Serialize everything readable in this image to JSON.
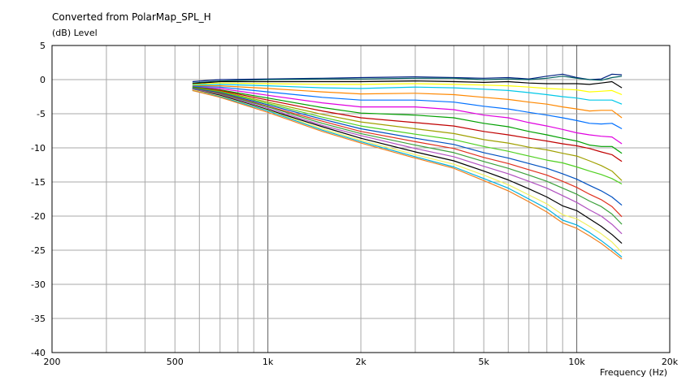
{
  "chart_data": {
    "type": "line",
    "title": "Converted from PolarMap_SPL_H",
    "ylabel": "(dB)  Level",
    "xlabel": "Frequency  (Hz)",
    "x_scale": "log",
    "xlim": [
      200,
      20000
    ],
    "ylim": [
      -40,
      5
    ],
    "grid": true,
    "x_tick_labels": [
      {
        "value": 200,
        "label": "200"
      },
      {
        "value": 500,
        "label": "500"
      },
      {
        "value": 1000,
        "label": "1k"
      },
      {
        "value": 2000,
        "label": "2k"
      },
      {
        "value": 5000,
        "label": "5k"
      },
      {
        "value": 10000,
        "label": "10k"
      },
      {
        "value": 20000,
        "label": "20k"
      }
    ],
    "y_tick_labels": [
      {
        "value": 5,
        "label": "5"
      },
      {
        "value": 0,
        "label": "0"
      },
      {
        "value": -5,
        "label": "-5"
      },
      {
        "value": -10,
        "label": "-10"
      },
      {
        "value": -15,
        "label": "-15"
      },
      {
        "value": -20,
        "label": "-20"
      },
      {
        "value": -25,
        "label": "-25"
      },
      {
        "value": -30,
        "label": "-30"
      },
      {
        "value": -35,
        "label": "-35"
      },
      {
        "value": -40,
        "label": "-40"
      }
    ],
    "x": [
      570,
      700,
      1000,
      1500,
      2000,
      3000,
      4000,
      5000,
      6000,
      7000,
      8000,
      9000,
      10000,
      11000,
      12000,
      13000,
      14000
    ],
    "series": [
      {
        "color": "#002080",
        "values": [
          -0.3,
          0.0,
          0.1,
          0.2,
          0.3,
          0.4,
          0.3,
          0.2,
          0.3,
          0.1,
          0.5,
          0.8,
          0.3,
          0.0,
          0.1,
          0.8,
          0.7
        ]
      },
      {
        "color": "#006060",
        "values": [
          -0.5,
          -0.2,
          0.0,
          0.1,
          0.1,
          0.2,
          0.2,
          0.0,
          0.1,
          0.0,
          0.2,
          0.5,
          0.2,
          0.0,
          -0.1,
          0.3,
          0.5
        ]
      },
      {
        "color": "#000000",
        "values": [
          -0.6,
          -0.3,
          -0.3,
          -0.3,
          -0.3,
          -0.2,
          -0.3,
          -0.4,
          -0.3,
          -0.5,
          -0.6,
          -0.6,
          -0.6,
          -0.7,
          -0.5,
          -0.3,
          -1.2
        ]
      },
      {
        "color": "#ffff00",
        "values": [
          -0.7,
          -0.5,
          -0.6,
          -0.7,
          -0.7,
          -0.6,
          -0.7,
          -0.8,
          -0.9,
          -1.1,
          -1.3,
          -1.4,
          -1.5,
          -1.8,
          -1.7,
          -1.6,
          -2.2
        ]
      },
      {
        "color": "#00c8e8",
        "values": [
          -0.8,
          -0.7,
          -0.9,
          -1.2,
          -1.3,
          -1.1,
          -1.2,
          -1.4,
          -1.6,
          -1.9,
          -2.2,
          -2.5,
          -2.7,
          -3.0,
          -3.0,
          -3.0,
          -3.6
        ]
      },
      {
        "color": "#ff8800",
        "values": [
          -0.9,
          -0.9,
          -1.3,
          -1.8,
          -2.1,
          -2.0,
          -2.2,
          -2.6,
          -2.9,
          -3.3,
          -3.6,
          -4.0,
          -4.3,
          -4.6,
          -4.5,
          -4.5,
          -5.6
        ]
      },
      {
        "color": "#0070ff",
        "values": [
          -1.0,
          -1.1,
          -1.8,
          -2.6,
          -3.0,
          -3.0,
          -3.3,
          -3.9,
          -4.3,
          -4.8,
          -5.2,
          -5.6,
          -6.0,
          -6.4,
          -6.5,
          -6.4,
          -7.2
        ]
      },
      {
        "color": "#e000e0",
        "values": [
          -1.1,
          -1.3,
          -2.3,
          -3.4,
          -4.0,
          -4.0,
          -4.4,
          -5.2,
          -5.6,
          -6.3,
          -6.8,
          -7.3,
          -7.8,
          -8.1,
          -8.3,
          -8.4,
          -9.4
        ]
      },
      {
        "color": "#00a000",
        "values": [
          -1.1,
          -1.5,
          -2.7,
          -4.1,
          -4.9,
          -5.2,
          -5.6,
          -6.4,
          -6.9,
          -7.6,
          -8.1,
          -8.6,
          -9.0,
          -9.6,
          -9.8,
          -9.8,
          -10.8
        ]
      },
      {
        "color": "#c00000",
        "values": [
          -1.2,
          -1.6,
          -3.0,
          -4.6,
          -5.6,
          -6.3,
          -6.8,
          -7.6,
          -8.1,
          -8.6,
          -9.0,
          -9.4,
          -9.7,
          -10.1,
          -10.6,
          -11.0,
          -12.0
        ]
      },
      {
        "color": "#a0a000",
        "values": [
          -1.2,
          -1.7,
          -3.3,
          -5.1,
          -6.2,
          -7.2,
          -7.9,
          -8.8,
          -9.3,
          -9.9,
          -10.3,
          -10.8,
          -11.2,
          -11.9,
          -12.6,
          -13.4,
          -14.8
        ]
      },
      {
        "color": "#50d020",
        "values": [
          -1.3,
          -1.8,
          -3.5,
          -5.5,
          -6.8,
          -8.0,
          -8.8,
          -9.8,
          -10.5,
          -11.2,
          -11.8,
          -12.2,
          -12.8,
          -13.4,
          -13.9,
          -14.5,
          -15.3
        ]
      },
      {
        "color": "#0050c0",
        "values": [
          -1.3,
          -1.9,
          -3.7,
          -5.8,
          -7.2,
          -8.6,
          -9.5,
          -10.7,
          -11.5,
          -12.3,
          -13.0,
          -13.8,
          -14.6,
          -15.5,
          -16.3,
          -17.2,
          -18.4
        ]
      },
      {
        "color": "#e0301e",
        "values": [
          -1.4,
          -2.0,
          -3.9,
          -6.1,
          -7.6,
          -9.1,
          -10.1,
          -11.4,
          -12.3,
          -13.2,
          -14.0,
          -14.9,
          -15.8,
          -16.8,
          -17.6,
          -18.6,
          -20.1
        ]
      },
      {
        "color": "#3aa03a",
        "values": [
          -1.4,
          -2.1,
          -4.0,
          -6.4,
          -7.9,
          -9.6,
          -10.7,
          -12.0,
          -13.0,
          -14.0,
          -14.9,
          -15.9,
          -16.8,
          -17.8,
          -18.6,
          -19.7,
          -21.2
        ]
      },
      {
        "color": "#b050c0",
        "values": [
          -1.4,
          -2.2,
          -4.2,
          -6.7,
          -8.2,
          -10.1,
          -11.3,
          -12.7,
          -13.8,
          -14.9,
          -15.9,
          -17.0,
          -18.0,
          -19.1,
          -20.0,
          -21.2,
          -22.6
        ]
      },
      {
        "color": "#000000",
        "values": [
          -1.5,
          -2.3,
          -4.4,
          -6.9,
          -8.6,
          -10.6,
          -11.9,
          -13.4,
          -14.7,
          -16.0,
          -17.2,
          -18.5,
          -19.2,
          -20.4,
          -21.5,
          -22.7,
          -24.0
        ]
      },
      {
        "color": "#f0f060",
        "values": [
          -1.5,
          -2.4,
          -4.5,
          -7.2,
          -8.9,
          -11.0,
          -12.4,
          -14.0,
          -15.4,
          -16.9,
          -18.2,
          -19.8,
          -20.4,
          -21.5,
          -22.6,
          -23.8,
          -25.3
        ]
      },
      {
        "color": "#00b0e0",
        "values": [
          -1.6,
          -2.5,
          -4.6,
          -7.4,
          -9.1,
          -11.3,
          -12.8,
          -14.5,
          -15.9,
          -17.5,
          -18.9,
          -20.6,
          -21.3,
          -22.4,
          -23.6,
          -24.8,
          -26.0
        ]
      },
      {
        "color": "#f08020",
        "values": [
          -1.6,
          -2.6,
          -4.8,
          -7.6,
          -9.3,
          -11.5,
          -13.0,
          -14.8,
          -16.3,
          -17.9,
          -19.4,
          -21.0,
          -21.8,
          -22.9,
          -24.0,
          -25.2,
          -26.3
        ]
      }
    ]
  }
}
